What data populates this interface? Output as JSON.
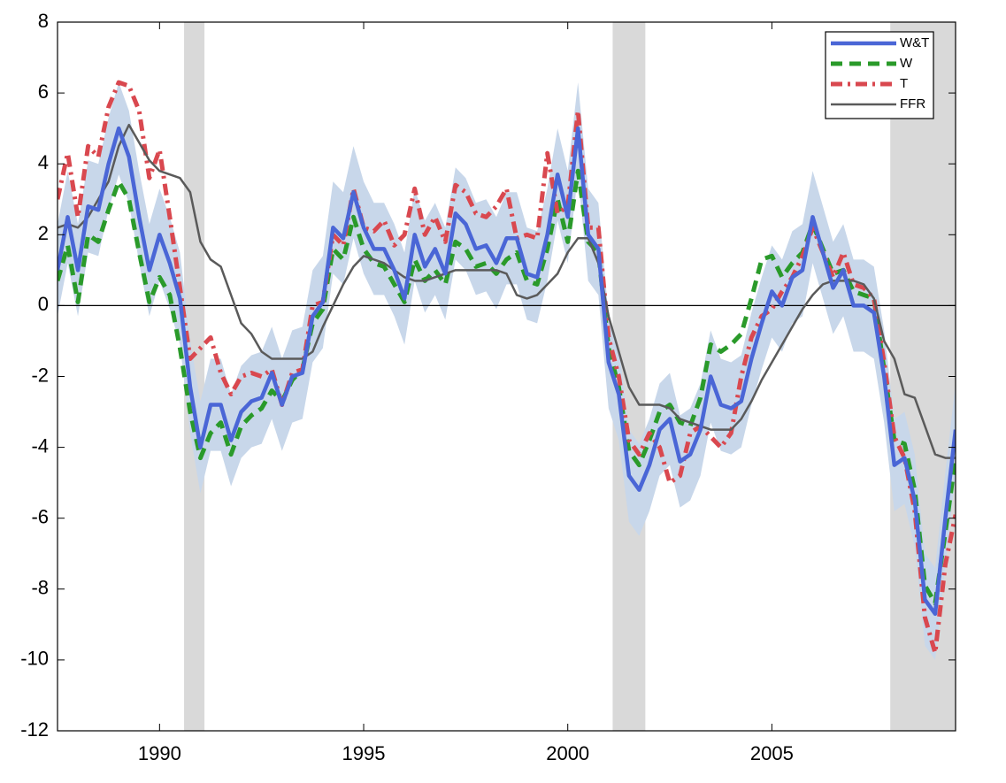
{
  "chart_data": {
    "type": "line",
    "x": [
      1987.5,
      1987.75,
      1988,
      1988.25,
      1988.5,
      1988.75,
      1989,
      1989.25,
      1989.5,
      1989.75,
      1990,
      1990.25,
      1990.5,
      1990.75,
      1991,
      1991.25,
      1991.5,
      1991.75,
      1992,
      1992.25,
      1992.5,
      1992.75,
      1993,
      1993.25,
      1993.5,
      1993.75,
      1994,
      1994.25,
      1994.5,
      1994.75,
      1995,
      1995.25,
      1995.5,
      1995.75,
      1996,
      1996.25,
      1996.5,
      1996.75,
      1997,
      1997.25,
      1997.5,
      1997.75,
      1998,
      1998.25,
      1998.5,
      1998.75,
      1999,
      1999.25,
      1999.5,
      1999.75,
      2000,
      2000.25,
      2000.5,
      2000.75,
      2001,
      2001.25,
      2001.5,
      2001.75,
      2002,
      2002.25,
      2002.5,
      2002.75,
      2003,
      2003.25,
      2003.5,
      2003.75,
      2004,
      2004.25,
      2004.5,
      2004.75,
      2005,
      2005.25,
      2005.5,
      2005.75,
      2006,
      2006.25,
      2006.5,
      2006.75,
      2007,
      2007.25,
      2007.5,
      2007.75,
      2008,
      2008.25,
      2008.5,
      2008.75,
      2009,
      2009.25,
      2009.5
    ],
    "series": [
      {
        "name": "W&T",
        "color": "#4a66d6",
        "style": "solid",
        "values": [
          1.0,
          2.5,
          1.0,
          2.8,
          2.7,
          4.0,
          5.0,
          4.2,
          2.5,
          1.0,
          2.0,
          1.2,
          0.2,
          -2.3,
          -4.0,
          -2.8,
          -2.8,
          -3.8,
          -3.0,
          -2.7,
          -2.6,
          -1.9,
          -2.8,
          -2.0,
          -1.9,
          -0.3,
          0.1,
          2.2,
          1.9,
          3.2,
          2.2,
          1.6,
          1.6,
          1.0,
          0.2,
          2.0,
          1.1,
          1.6,
          0.9,
          2.6,
          2.3,
          1.6,
          1.7,
          1.2,
          1.9,
          1.9,
          0.9,
          0.8,
          2.0,
          3.7,
          2.5,
          5.0,
          2.0,
          1.6,
          -1.6,
          -2.5,
          -4.8,
          -5.2,
          -4.5,
          -3.5,
          -3.2,
          -4.4,
          -4.2,
          -3.5,
          -2.0,
          -2.8,
          -2.9,
          -2.7,
          -1.5,
          -0.5,
          0.4,
          0.0,
          0.8,
          1.0,
          2.5,
          1.5,
          0.5,
          1.0,
          0.0,
          0.0,
          -0.2,
          -2.0,
          -4.5,
          -4.3,
          -5.5,
          -8.3,
          -8.7,
          -6.0,
          -3.5
        ]
      },
      {
        "name": "W",
        "color": "#2a9a2a",
        "style": "dashed",
        "values": [
          0.7,
          1.7,
          0.1,
          2.0,
          1.8,
          2.7,
          3.5,
          3.0,
          1.5,
          0.1,
          0.8,
          0.3,
          -1.2,
          -3.0,
          -4.3,
          -3.6,
          -3.3,
          -4.2,
          -3.4,
          -3.1,
          -2.9,
          -2.4,
          -2.7,
          -2.1,
          -1.8,
          -0.5,
          -0.1,
          1.6,
          1.3,
          2.5,
          1.6,
          1.2,
          1.1,
          0.6,
          0.1,
          1.3,
          0.7,
          1.0,
          0.6,
          1.8,
          1.6,
          1.1,
          1.2,
          0.9,
          1.3,
          1.5,
          0.7,
          0.6,
          1.6,
          3.0,
          1.8,
          3.8,
          1.8,
          1.5,
          -1.2,
          -2.3,
          -4.1,
          -4.5,
          -3.8,
          -3.0,
          -2.8,
          -3.3,
          -3.4,
          -2.6,
          -1.1,
          -1.3,
          -1.1,
          -0.8,
          0.2,
          1.3,
          1.4,
          0.8,
          1.2,
          1.5,
          2.3,
          1.6,
          0.9,
          1.0,
          0.4,
          0.3,
          0.2,
          -1.8,
          -3.8,
          -3.9,
          -5.2,
          -7.9,
          -8.4,
          -6.4,
          -4.3
        ]
      },
      {
        "name": "T",
        "color": "#d9484f",
        "style": "dashdot",
        "values": [
          3.0,
          4.3,
          2.5,
          4.5,
          4.2,
          5.6,
          6.3,
          6.2,
          5.5,
          3.6,
          4.4,
          2.5,
          0.5,
          -1.5,
          -1.2,
          -0.9,
          -1.9,
          -2.5,
          -2.0,
          -1.9,
          -2.0,
          -1.8,
          -2.8,
          -1.9,
          -1.8,
          0.0,
          0.1,
          2.0,
          1.7,
          3.3,
          2.2,
          2.1,
          2.4,
          1.7,
          2.0,
          3.3,
          2.0,
          2.5,
          1.8,
          3.4,
          3.2,
          2.6,
          2.5,
          2.8,
          3.3,
          1.9,
          2.0,
          1.9,
          4.3,
          2.6,
          2.8,
          5.5,
          2.2,
          2.2,
          -0.9,
          -2.0,
          -3.8,
          -4.2,
          -3.6,
          -4.0,
          -5.0,
          -4.8,
          -3.6,
          -3.4,
          -3.7,
          -4.0,
          -3.6,
          -2.0,
          -0.9,
          -0.3,
          -0.1,
          0.4,
          0.8,
          1.4,
          2.2,
          1.5,
          0.8,
          1.5,
          0.6,
          0.5,
          0.2,
          -1.6,
          -3.7,
          -4.3,
          -5.8,
          -8.8,
          -9.8,
          -7.3,
          -5.9
        ]
      },
      {
        "name": "FFR",
        "color": "#5a5a5a",
        "style": "thin",
        "values": [
          2.2,
          2.3,
          2.2,
          2.5,
          3.0,
          3.5,
          4.5,
          5.1,
          4.6,
          4.1,
          3.8,
          3.7,
          3.6,
          3.2,
          1.8,
          1.3,
          1.1,
          0.3,
          -0.5,
          -0.8,
          -1.3,
          -1.5,
          -1.5,
          -1.5,
          -1.5,
          -1.3,
          -0.6,
          0.0,
          0.6,
          1.1,
          1.4,
          1.3,
          1.2,
          1.0,
          0.8,
          0.7,
          0.7,
          0.8,
          0.9,
          1.0,
          1.0,
          1.0,
          1.0,
          1.0,
          0.9,
          0.3,
          0.2,
          0.3,
          0.6,
          0.9,
          1.5,
          1.9,
          1.9,
          1.2,
          -0.3,
          -1.3,
          -2.3,
          -2.8,
          -2.8,
          -2.8,
          -2.9,
          -3.2,
          -3.3,
          -3.4,
          -3.5,
          -3.5,
          -3.5,
          -3.2,
          -2.7,
          -2.1,
          -1.6,
          -1.1,
          -0.6,
          -0.1,
          0.3,
          0.6,
          0.7,
          0.7,
          0.7,
          0.6,
          0.2,
          -1.0,
          -1.5,
          -2.5,
          -2.6,
          -3.4,
          -4.2,
          -4.3,
          -4.3
        ]
      }
    ],
    "bands": [
      {
        "color": "#c8d7ea",
        "upper": [
          2.3,
          3.8,
          2.3,
          4.1,
          4.0,
          5.3,
          6.3,
          5.5,
          3.8,
          2.3,
          3.3,
          2.5,
          1.5,
          -1.0,
          -2.7,
          -1.5,
          -1.5,
          -2.5,
          -1.7,
          -1.4,
          -1.3,
          -0.6,
          -1.5,
          -0.7,
          -0.6,
          1.0,
          1.4,
          3.5,
          3.2,
          4.5,
          3.5,
          2.9,
          2.9,
          2.3,
          1.5,
          3.3,
          2.4,
          2.9,
          2.2,
          3.9,
          3.6,
          2.9,
          3.0,
          2.5,
          3.2,
          3.2,
          2.2,
          2.1,
          3.3,
          5.0,
          3.8,
          6.3,
          3.3,
          2.9,
          -0.3,
          -1.2,
          -3.5,
          -3.9,
          -3.2,
          -2.2,
          -1.9,
          -3.1,
          -2.9,
          -2.2,
          -0.7,
          -1.5,
          -1.6,
          -1.4,
          -0.2,
          0.8,
          1.7,
          1.3,
          2.1,
          2.3,
          3.8,
          2.8,
          1.8,
          2.3,
          1.3,
          1.3,
          1.1,
          -0.7,
          -3.2,
          -3.0,
          -4.2,
          -7.0,
          -7.4,
          -4.7,
          -2.2
        ],
        "lower": [
          -0.3,
          1.2,
          -0.3,
          1.5,
          1.4,
          2.7,
          3.7,
          2.9,
          1.2,
          -0.3,
          0.7,
          -0.1,
          -1.1,
          -3.6,
          -5.3,
          -4.1,
          -4.1,
          -5.1,
          -4.3,
          -4.0,
          -3.9,
          -3.2,
          -4.1,
          -3.3,
          -3.2,
          -1.6,
          -1.2,
          0.9,
          0.6,
          1.9,
          0.9,
          0.3,
          0.3,
          -0.3,
          -1.1,
          0.7,
          -0.2,
          0.3,
          -0.4,
          1.3,
          1.0,
          0.3,
          0.4,
          -0.1,
          0.6,
          0.6,
          -0.4,
          -0.5,
          0.7,
          2.4,
          1.2,
          3.7,
          0.7,
          0.3,
          -2.9,
          -3.8,
          -6.1,
          -6.5,
          -5.8,
          -4.8,
          -4.5,
          -5.7,
          -5.5,
          -4.8,
          -3.3,
          -4.1,
          -4.2,
          -4.0,
          -2.8,
          -1.8,
          -0.9,
          -1.3,
          -0.5,
          -0.3,
          1.2,
          0.2,
          -0.8,
          -0.3,
          -1.3,
          -1.3,
          -1.5,
          -3.3,
          -5.8,
          -5.6,
          -6.8,
          -9.6,
          -10.0,
          -7.3,
          -4.8
        ]
      }
    ],
    "shading": [
      [
        1990.6,
        1991.1
      ],
      [
        2001.1,
        2001.9
      ],
      [
        2007.9,
        2009.5
      ]
    ],
    "shading_color": "#d9d9d9",
    "reference_line": 0,
    "xlim": [
      1987.5,
      2009.5
    ],
    "xticks": [
      1990,
      1995,
      2000,
      2005
    ],
    "ylim": [
      -12,
      8
    ],
    "yticks": [
      -12,
      -10,
      -8,
      -6,
      -4,
      -2,
      0,
      2,
      4,
      6,
      8
    ],
    "legend": "upper right",
    "grid": false
  }
}
